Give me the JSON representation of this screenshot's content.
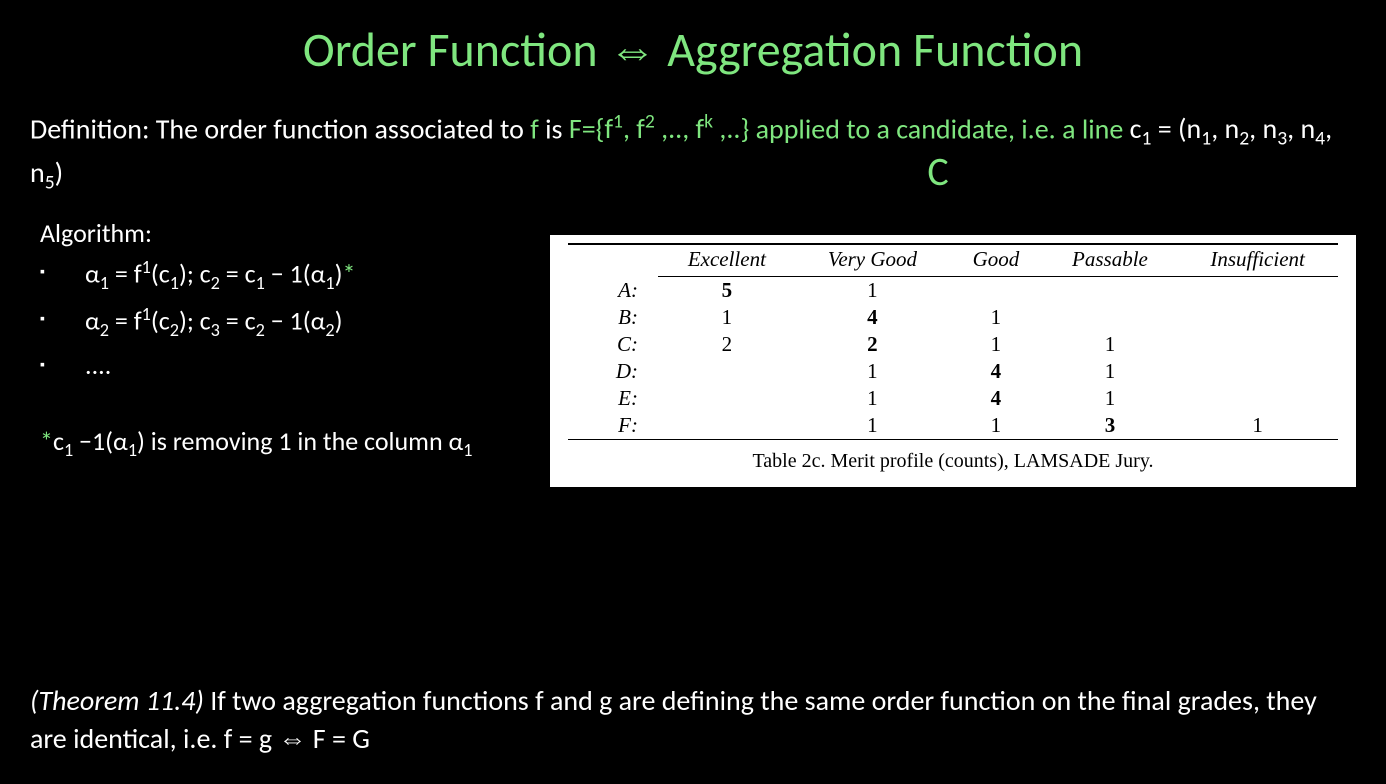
{
  "colors": {
    "background": "#000000",
    "text": "#ffffff",
    "accent": "#7FE67F",
    "table_bg": "#ffffff",
    "table_text": "#000000"
  },
  "title": {
    "left": "Order Function",
    "arrow": "⇔",
    "right": "Aggregation Function",
    "fontsize": 48
  },
  "definition": {
    "prefix": "Definition: The order function associated to ",
    "f": "f",
    "is": " is ",
    "Fset": "F={f¹, f² ,.., fᵏ ,..}",
    "applied": " applied to a candidate, i.e. a ",
    "line_word": "line",
    "c_expr": " c₁ = (n₁, n₂, n₃, n₄, n₅)",
    "fontsize": 28
  },
  "C_label": "C",
  "algorithm": {
    "header": "Algorithm:",
    "steps": [
      {
        "text": "α₁ = f¹(c₁); c₂ = c₁ − 1(α₁)",
        "star": "*"
      },
      {
        "text": "α₂ = f¹(c₂); c₃ = c₂ − 1(α₂)",
        "star": ""
      },
      {
        "text": "....",
        "star": ""
      }
    ],
    "fontsize": 26
  },
  "footnote": {
    "star": "*",
    "text": "c₁ −1(α₁) is removing 1 in the column α₁"
  },
  "table": {
    "columns": [
      "",
      "Excellent",
      "Very Good",
      "Good",
      "Passable",
      "Insufficient"
    ],
    "rows": [
      {
        "label": "A:",
        "cells": [
          "5",
          "1",
          "",
          "",
          ""
        ],
        "bold_idx": 0
      },
      {
        "label": "B:",
        "cells": [
          "1",
          "4",
          "1",
          "",
          ""
        ],
        "bold_idx": 1
      },
      {
        "label": "C:",
        "cells": [
          "2",
          "2",
          "1",
          "1",
          ""
        ],
        "bold_idx": 1
      },
      {
        "label": "D:",
        "cells": [
          "",
          "1",
          "4",
          "1",
          ""
        ],
        "bold_idx": 2
      },
      {
        "label": "E:",
        "cells": [
          "",
          "1",
          "4",
          "1",
          ""
        ],
        "bold_idx": 2
      },
      {
        "label": "F:",
        "cells": [
          "",
          "1",
          "1",
          "3",
          "1"
        ],
        "bold_idx": 3
      }
    ],
    "caption": "Table 2c. Merit profile (counts), LAMSADE Jury.",
    "font_family": "Times New Roman",
    "fontsize": 21
  },
  "theorem": {
    "label": "(Theorem 11.4)",
    "body": " If two aggregation functions f and g are defining the same order function on the final grades, they are identical, i.e. f = g ⇔ F = G",
    "fontsize": 28
  }
}
